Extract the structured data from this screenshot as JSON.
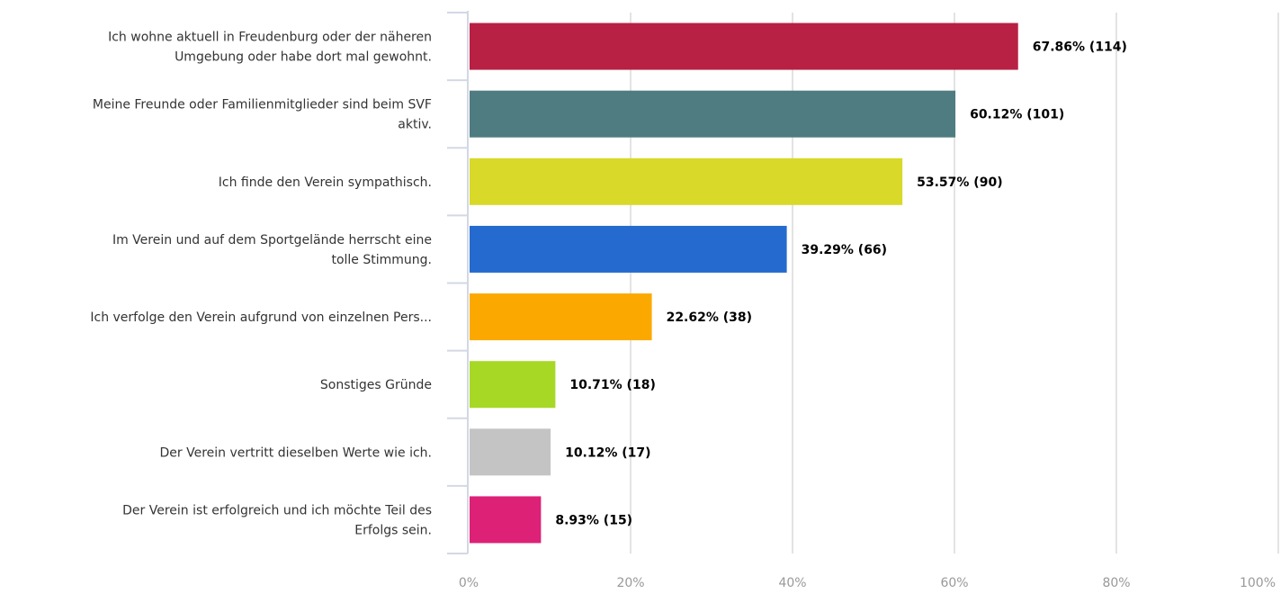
{
  "chart_data": {
    "type": "bar",
    "orientation": "horizontal",
    "categories": [
      [
        "Ich wohne aktuell in Freudenburg oder der näheren",
        "Umgebung oder habe dort mal gewohnt."
      ],
      [
        "Meine Freunde oder Familienmitglieder sind beim SVF",
        "aktiv."
      ],
      [
        "Ich finde den Verein sympathisch."
      ],
      [
        "Im Verein und auf dem Sportgelände herrscht eine",
        "tolle Stimmung."
      ],
      [
        "Ich verfolge den Verein aufgrund von einzelnen Pers..."
      ],
      [
        "Sonstiges Gründe"
      ],
      [
        "Der Verein vertritt dieselben Werte wie ich."
      ],
      [
        "Der Verein ist erfolgreich und ich möchte Teil des",
        "Erfolgs sein."
      ]
    ],
    "values": [
      67.86,
      60.12,
      53.57,
      39.29,
      22.62,
      10.71,
      10.12,
      8.93
    ],
    "data_labels": [
      "67.86% (114)",
      "60.12% (101)",
      "53.57% (90)",
      "39.29% (66)",
      "22.62% (38)",
      "10.71% (18)",
      "10.12% (17)",
      "8.93% (15)"
    ],
    "colors": [
      "#b82044",
      "#4f7c80",
      "#d8d928",
      "#256bcf",
      "#fba900",
      "#a8d826",
      "#c4c4c4",
      "#dc2177"
    ],
    "xlim": [
      0,
      100
    ],
    "xticks": [
      0,
      20,
      40,
      60,
      80,
      100
    ],
    "xtick_labels": [
      "0%",
      "20%",
      "40%",
      "60%",
      "80%",
      "100%"
    ],
    "grid": true,
    "title": "",
    "xlabel": "",
    "ylabel": ""
  }
}
